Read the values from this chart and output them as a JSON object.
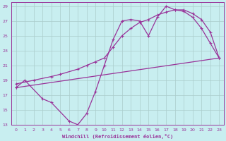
{
  "xlabel": "Windchill (Refroidissement éolien,°C)",
  "bg_color": "#c8eef0",
  "grid_color": "#aacccc",
  "line_color": "#993399",
  "xlim": [
    -0.5,
    23.5
  ],
  "ylim": [
    13,
    29.5
  ],
  "xticks": [
    0,
    1,
    2,
    3,
    4,
    5,
    6,
    7,
    8,
    9,
    10,
    11,
    12,
    13,
    14,
    15,
    16,
    17,
    18,
    19,
    20,
    21,
    22,
    23
  ],
  "yticks": [
    13,
    15,
    17,
    19,
    21,
    23,
    25,
    27,
    29
  ],
  "line1_x": [
    0,
    1,
    3,
    4,
    6,
    7,
    8,
    9,
    10,
    11,
    12,
    13,
    14,
    15,
    16,
    17,
    18,
    19,
    20,
    21,
    22,
    23
  ],
  "line1_y": [
    18.0,
    19.0,
    16.5,
    16.0,
    13.5,
    13.0,
    14.5,
    17.5,
    21.0,
    24.5,
    27.0,
    27.2,
    27.0,
    25.0,
    27.5,
    29.0,
    28.5,
    28.3,
    27.5,
    26.0,
    24.0,
    22.0
  ],
  "line2_x": [
    0,
    2,
    4,
    5,
    7,
    8,
    9,
    10,
    11,
    12,
    13,
    14,
    15,
    16,
    17,
    18,
    19,
    20,
    21,
    22,
    23
  ],
  "line2_y": [
    18.5,
    19.0,
    19.5,
    19.8,
    20.5,
    21.0,
    21.5,
    22.0,
    23.5,
    25.0,
    26.0,
    26.8,
    27.2,
    27.8,
    28.2,
    28.5,
    28.5,
    28.0,
    27.2,
    25.5,
    22.0
  ],
  "line3_x": [
    0,
    23
  ],
  "line3_y": [
    18.0,
    22.0
  ],
  "marker": "D",
  "markersize": 2.5,
  "linewidth": 0.9
}
